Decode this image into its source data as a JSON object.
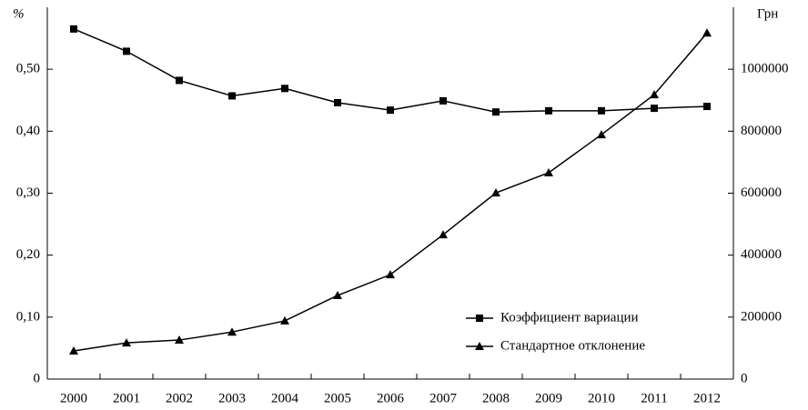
{
  "chart_data": {
    "type": "line",
    "ylabel": "%",
    "y2label": "Грн",
    "categories": [
      "2000",
      "2001",
      "2002",
      "2003",
      "2004",
      "2005",
      "2006",
      "2007",
      "2008",
      "2009",
      "2010",
      "2011",
      "2012"
    ],
    "series": [
      {
        "name": "Коэффициент вариации",
        "color": "#000000",
        "marker": "square",
        "values": [
          0.565,
          0.529,
          0.482,
          0.457,
          0.469,
          0.446,
          0.434,
          0.449,
          0.431,
          0.433,
          0.433,
          0.437,
          0.44
        ]
      },
      {
        "name": "Стандартное отклонение",
        "color": "#000000",
        "marker": "triangle",
        "axis": "y2",
        "values": [
          91000,
          117000,
          126000,
          152000,
          188000,
          270000,
          337000,
          466000,
          601000,
          666000,
          789000,
          918000,
          1117000
        ]
      }
    ],
    "ylim": [
      0,
      0.6
    ],
    "yticks": [
      0,
      {
        "value": 0.1,
        "label": "0,10"
      },
      {
        "value": 0.2,
        "label": "0,20"
      },
      {
        "value": 0.3,
        "label": "0,30"
      },
      {
        "value": 0.4,
        "label": "0,40"
      },
      {
        "value": 0.5,
        "label": "0,50"
      }
    ],
    "y2lim": [
      0,
      1200000
    ],
    "y2ticks": [
      0,
      200000,
      400000,
      600000,
      800000,
      1000000
    ],
    "grid": false,
    "legend": "lower right"
  }
}
